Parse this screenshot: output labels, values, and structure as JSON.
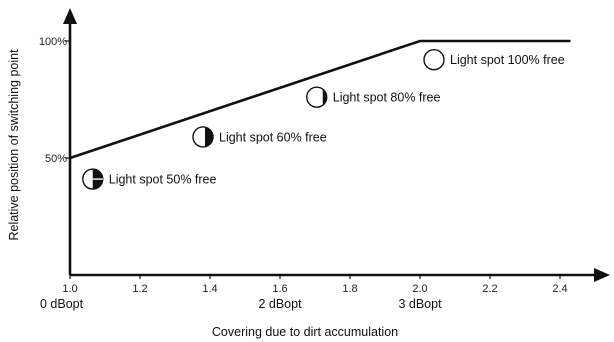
{
  "chart_data": {
    "type": "line",
    "xlabel": "Covering due to dirt accumulation",
    "ylabel": "Relative position of switching point",
    "xlim": [
      1.0,
      2.5
    ],
    "ylim": [
      0,
      112
    ],
    "x_ticks": [
      1.0,
      1.2,
      1.4,
      1.6,
      1.8,
      2.0,
      2.2,
      2.4
    ],
    "x_tick_labels": [
      "1.0",
      "1.2",
      "1.4",
      "1.6",
      "1.8",
      "2.0",
      "2.2",
      "2.4"
    ],
    "y_ticks": [
      50,
      100
    ],
    "y_tick_labels": [
      "50%",
      "100%"
    ],
    "db_labels": [
      {
        "x": 1.0,
        "text": "0 dBopt"
      },
      {
        "x": 1.6,
        "text": "2 dBopt"
      },
      {
        "x": 2.0,
        "text": "3 dBopt"
      }
    ],
    "series": [
      {
        "x": [
          1.0,
          2.0,
          2.43
        ],
        "y": [
          50,
          100,
          100
        ]
      }
    ],
    "annotations": [
      {
        "x": 1.065,
        "y": 41,
        "fill_fraction": 0.5,
        "text": "Light spot 50% free"
      },
      {
        "x": 1.38,
        "y": 59,
        "fill_fraction": 0.4,
        "text": "Light spot 60% free"
      },
      {
        "x": 1.705,
        "y": 76,
        "fill_fraction": 0.2,
        "text": "Light spot 80% free"
      },
      {
        "x": 2.04,
        "y": 92,
        "fill_fraction": 0.0,
        "text": "Light spot 100% free"
      }
    ]
  }
}
